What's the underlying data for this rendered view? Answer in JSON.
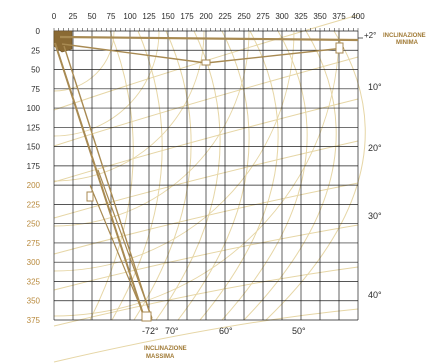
{
  "x_axis_ticks": [
    "0",
    "25",
    "50",
    "75",
    "100",
    "125",
    "150",
    "175",
    "200",
    "225",
    "250",
    "275",
    "300",
    "325",
    "350",
    "375",
    "400"
  ],
  "y_axis_ticks": [
    "0",
    "25",
    "50",
    "75",
    "100",
    "125",
    "150",
    "175",
    "200",
    "225",
    "250",
    "275",
    "300",
    "325",
    "350",
    "375"
  ],
  "y_axis_highlighted_ticks": [
    "200",
    "225",
    "250",
    "275",
    "300",
    "325",
    "350",
    "375"
  ],
  "min_angle_label": "+2°",
  "min_label_line1": "INCLINAZIONE",
  "min_label_line2": "MINIMA",
  "max_angle_label": "-72°",
  "max_label_line1": "INCLINAZIONE",
  "max_label_line2": "MASSIMA",
  "right_angle_labels": [
    "10°",
    "20°",
    "30°",
    "40°"
  ],
  "bottom_angle_labels": [
    "70°",
    "60°",
    "50°"
  ],
  "colors": {
    "grid": "#1e1e1e",
    "curves": "#e6d6a6",
    "arm": "#a88a52",
    "accent": "#b8893c"
  }
}
